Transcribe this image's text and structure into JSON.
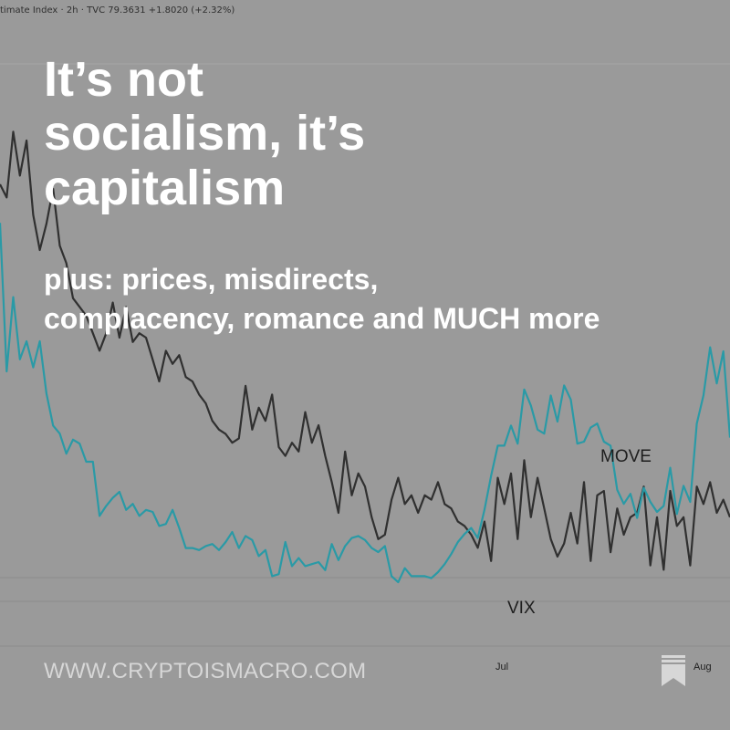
{
  "ticker": "timate Index · 2h · TVC  79.3631  +1.8020 (+2.32%)",
  "headline": {
    "line1": "It’s not",
    "line2": "socialism, it’s",
    "line3": "capitalism"
  },
  "subtitle": {
    "line1": "plus: prices, misdirects,",
    "line2": "complacency, romance and MUCH more"
  },
  "footer": {
    "url": "WWW.CRYPTOISMACRO.COM",
    "bookmark_icon": "bookmark-icon"
  },
  "colors": {
    "background": "#9a9a9a",
    "move_line": "#303030",
    "vix_line": "#2a9aa6",
    "text": "#ffffff",
    "footer_text": "#d7d7d7"
  },
  "chart_data": {
    "type": "line",
    "title": "",
    "xlabel": "",
    "ylabel": "",
    "x_ticks": [
      "Jul",
      "Aug"
    ],
    "grid": true,
    "series": [
      {
        "name": "MOVE",
        "values": [
          145,
          142,
          157,
          147,
          155,
          138,
          130,
          136,
          144,
          131,
          127,
          119,
          117,
          115,
          111,
          107,
          111,
          118,
          110,
          117,
          109,
          111,
          110,
          105,
          100,
          107,
          104,
          106,
          101,
          100,
          97,
          95,
          91,
          89,
          88,
          86,
          87,
          99,
          89,
          94,
          91,
          97,
          85,
          83,
          86,
          84,
          93,
          86,
          90,
          83,
          77,
          70,
          84,
          74,
          79,
          76,
          69,
          64,
          65,
          73,
          78,
          72,
          74,
          70,
          74,
          73,
          77,
          72,
          71,
          68,
          67,
          65,
          62,
          68,
          59,
          78,
          72,
          79,
          64,
          82,
          69,
          78,
          71,
          64,
          60,
          63,
          70,
          63,
          77,
          59,
          74,
          75,
          61,
          71,
          65,
          69,
          70,
          76,
          58,
          69,
          57,
          75,
          67,
          69,
          58,
          76,
          72,
          77,
          70,
          73,
          69
        ]
      },
      {
        "name": "VIX",
        "values": [
          29.9,
          22.5,
          26.2,
          23.1,
          24.0,
          22.7,
          24.0,
          21.4,
          19.8,
          19.4,
          18.4,
          19.1,
          18.9,
          18.0,
          18.0,
          15.3,
          15.8,
          16.2,
          16.5,
          15.6,
          15.9,
          15.3,
          15.6,
          15.5,
          14.8,
          14.9,
          15.6,
          14.7,
          13.7,
          13.7,
          13.6,
          13.8,
          13.9,
          13.6,
          14.0,
          14.5,
          13.7,
          14.3,
          14.1,
          13.3,
          13.6,
          12.3,
          12.4,
          14.0,
          12.8,
          13.2,
          12.8,
          12.9,
          13.0,
          12.6,
          13.9,
          13.1,
          13.8,
          14.2,
          14.3,
          14.1,
          13.7,
          13.5,
          13.8,
          12.3,
          12.0,
          12.7,
          12.3,
          12.3,
          12.3,
          12.2,
          12.5,
          12.9,
          13.4,
          14.0,
          14.4,
          14.7,
          14.2,
          15.6,
          17.3,
          18.8,
          18.8,
          19.8,
          18.9,
          21.6,
          20.8,
          19.6,
          19.4,
          21.3,
          20.0,
          21.8,
          21.1,
          18.9,
          19.0,
          19.7,
          19.9,
          19.0,
          18.8,
          16.6,
          15.9,
          16.4,
          15.2,
          16.7,
          16.0,
          15.5,
          15.8,
          17.7,
          15.4,
          16.8,
          16.0,
          19.9,
          21.3,
          23.7,
          21.9,
          23.5,
          19.2
        ]
      }
    ]
  }
}
